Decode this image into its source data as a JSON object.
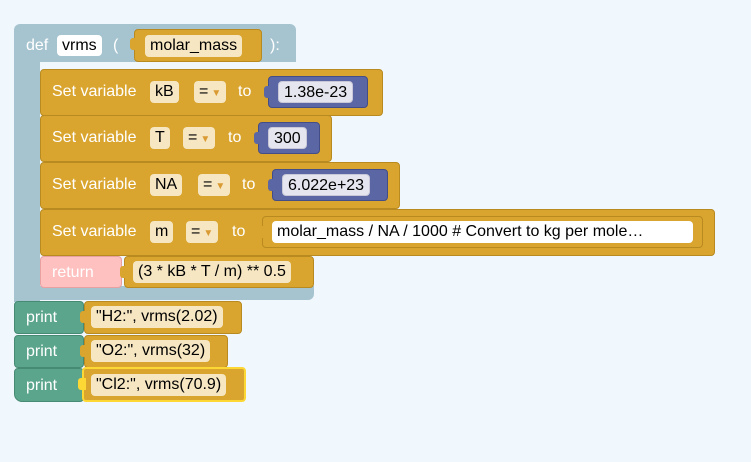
{
  "def": {
    "keyword": "def",
    "name": "vrms",
    "open_paren": "(",
    "param": "molar_mass",
    "close": "):"
  },
  "statements": [
    {
      "keyword": "Set variable",
      "var": "kB",
      "op": "=",
      "to": "to",
      "value": "1.38e-23"
    },
    {
      "keyword": "Set variable",
      "var": "T",
      "op": "=",
      "to": "to",
      "value": "300"
    },
    {
      "keyword": "Set variable",
      "var": "NA",
      "op": "=",
      "to": "to",
      "value": "6.022e+23"
    },
    {
      "keyword": "Set variable",
      "var": "m",
      "op": "=",
      "to": "to",
      "value": "molar_mass / NA / 1000  # Convert to kg per mole…"
    }
  ],
  "return_stmt": {
    "keyword": "return",
    "value": "(3 * kB * T / m) ** 0.5"
  },
  "prints": [
    {
      "keyword": "print",
      "value": "\"H2:\", vrms(2.02)"
    },
    {
      "keyword": "print",
      "value": "\"O2:\", vrms(32)"
    },
    {
      "keyword": "print",
      "value": "\"Cl2:\", vrms(70.9)"
    }
  ],
  "colors": {
    "workspace": "#f0f7fd",
    "def": "#a6c4d0",
    "variable": "#d9a52f",
    "number": "#5b67a5",
    "return": "#ffc0c0",
    "print": "#5ba58c",
    "selection": "#fdd835"
  },
  "icons": {
    "dropdown": "dropdown-arrow-icon"
  }
}
